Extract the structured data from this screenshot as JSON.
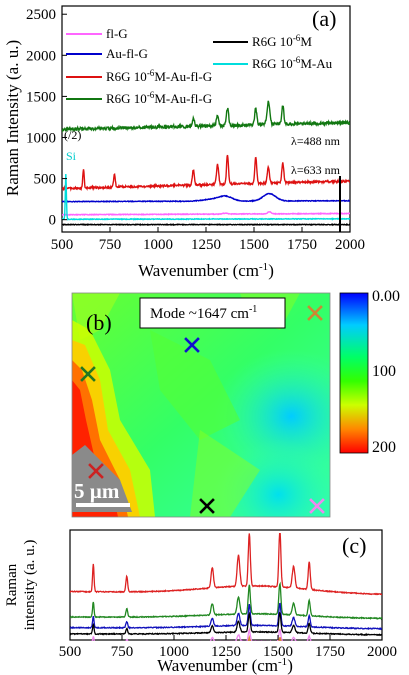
{
  "chart_data": [
    {
      "id": "a",
      "type": "line",
      "panel_label": "(a)",
      "xlabel": "Wavenumber (cm⁻¹)",
      "ylabel": "Raman Intensity (a. u.)",
      "xlim": [
        500,
        2000
      ],
      "ylim": [
        -150,
        2600
      ],
      "x_ticks": [
        500,
        750,
        1000,
        1250,
        1500,
        1750,
        2000
      ],
      "y_ticks": [
        0,
        500,
        1000,
        1500,
        2000,
        2500
      ],
      "grid": false,
      "legend_position": "top",
      "annotations": [
        {
          "text": "λ=488 nm",
          "x": 1880,
          "y": 1230
        },
        {
          "text": "λ=633 nm",
          "x": 1880,
          "y": 570
        },
        {
          "text": "(/2)",
          "x": 530,
          "y": 980
        },
        {
          "text": "Si",
          "x": 520,
          "y": 750
        }
      ],
      "series": [
        {
          "name": "fl-G",
          "color": "#ff66ff",
          "peaks": [
            [
              1580,
              25,
              12
            ],
            [
              1350,
              10,
              15
            ]
          ],
          "baseline": [
            60,
            75
          ]
        },
        {
          "name": "Au-fl-G",
          "color": "#0000cc",
          "peaks": [
            [
              1350,
              60,
              50
            ],
            [
              1580,
              90,
              45
            ],
            [
              1270,
              20,
              60
            ]
          ],
          "baseline": [
            220,
            230
          ]
        },
        {
          "name": "R6G 10⁻⁶M-Au-fl-G",
          "color": "#dd1111",
          "peaks": [
            [
              612,
              230,
              5
            ],
            [
              773,
              150,
              6
            ],
            [
              1184,
              190,
              7
            ],
            [
              1310,
              240,
              8
            ],
            [
              1362,
              360,
              7
            ],
            [
              1509,
              330,
              7
            ],
            [
              1575,
              190,
              8
            ],
            [
              1650,
              240,
              7
            ]
          ],
          "baseline": [
            380,
            470
          ]
        },
        {
          "name": "R6G 10⁻⁶M-Au-fl-G",
          "color": "#117711",
          "peaks": [
            [
              1184,
              90,
              8
            ],
            [
              1310,
              130,
              8
            ],
            [
              1362,
              210,
              8
            ],
            [
              1509,
              200,
              8
            ],
            [
              1575,
              280,
              10
            ],
            [
              1650,
              220,
              8
            ]
          ],
          "baseline": [
            1100,
            1180
          ]
        },
        {
          "name": "R6G 10⁻⁶M",
          "color": "#000000",
          "peaks": [],
          "baseline": [
            -60,
            -60
          ]
        },
        {
          "name": "R6G 10⁻⁶M-Au",
          "color": "#00dddd",
          "peaks": [],
          "baseline": [
            5,
            10
          ],
          "si_peak": [
            520,
            550,
            4
          ]
        }
      ]
    },
    {
      "id": "b",
      "type": "heatmap",
      "panel_label": "(b)",
      "title": "Mode ~1647 cm⁻¹",
      "scale_bar": "5 µm",
      "colorbar": {
        "ticks": [
          "0.00",
          "100",
          "200"
        ],
        "range": [
          0,
          200
        ]
      },
      "markers": [
        {
          "color": "#cc8833",
          "pos": "top-right"
        },
        {
          "color": "#1111cc",
          "pos": "upper-middle"
        },
        {
          "color": "#227722",
          "pos": "left"
        },
        {
          "color": "#cc2222",
          "pos": "lower-left"
        },
        {
          "color": "#000000",
          "pos": "bottom-middle"
        },
        {
          "color": "#ee88ee",
          "pos": "bottom-right"
        }
      ]
    },
    {
      "id": "c",
      "type": "line",
      "panel_label": "(c)",
      "xlabel": "Wavenumber (cm⁻¹)",
      "ylabel": "Raman intensity (a. u.)",
      "xlim": [
        500,
        2000
      ],
      "x_ticks": [
        500,
        750,
        1000,
        1250,
        1500,
        1750,
        2000
      ],
      "series": [
        {
          "color": "#dd2222",
          "scale": 1.0,
          "offset": 0.0
        },
        {
          "color": "#228822",
          "scale": 0.55,
          "offset": -0.22
        },
        {
          "color": "#1111bb",
          "scale": 0.4,
          "offset": -0.33
        },
        {
          "color": "#000000",
          "scale": 0.35,
          "offset": -0.41
        },
        {
          "color": "#ee88ee",
          "scale": 0.22,
          "offset": -0.5
        },
        {
          "color": "#dd8833",
          "scale": 0.18,
          "offset": -0.57
        }
      ]
    }
  ],
  "panel_a": {
    "panel_label": "(a)",
    "ylabel": "Raman Intensity (a. u.)",
    "xlabel_main": "Wavenumber (cm",
    "xlabel_sup": "-1",
    "xlabel_end": ")",
    "legend": [
      {
        "label": "fl-G",
        "color": "#ff66ff"
      },
      {
        "label": "Au-fl-G",
        "color": "#0000cc"
      },
      {
        "label": "R6G 10",
        "sup": "-6",
        "label_end": "M-Au-fl-G",
        "color": "#dd1111"
      },
      {
        "label": "R6G 10",
        "sup": "-6",
        "label_end": "M-Au-fl-G",
        "color": "#117711"
      },
      {
        "label": "R6G 10",
        "sup": "-6",
        "label_end": "M",
        "color": "#000000"
      },
      {
        "label": "R6G 10",
        "sup": "-6",
        "label_end": "M-Au",
        "color": "#00dddd"
      }
    ],
    "ann_488": "λ=488 nm",
    "ann_633": "λ=633 nm",
    "ann_half": "(/2)",
    "ann_si": "Si"
  },
  "panel_b": {
    "panel_label": "(b)",
    "mode_text": "Mode  ~1647 cm",
    "mode_sup": "-1",
    "scale_bar": "5 µm",
    "cb_ticks": [
      "0.00",
      "100",
      "200"
    ]
  },
  "panel_c": {
    "panel_label": "(c)",
    "ylabel_1": "Raman",
    "ylabel_2": "intensity (a. u.)",
    "xlabel_main": "Wavenumber (cm",
    "xlabel_sup": "-1",
    "xlabel_end": ")"
  }
}
